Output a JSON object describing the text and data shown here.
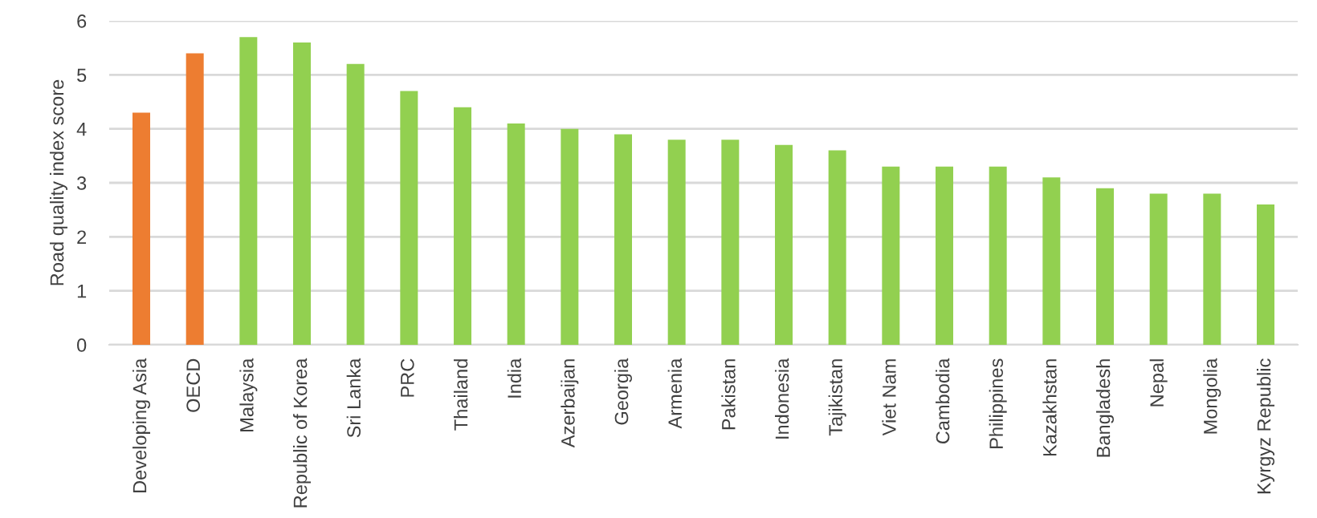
{
  "chart_data": {
    "type": "bar",
    "ylabel": "Road quality index score",
    "categories": [
      "Developing Asia",
      "OECD",
      "Malaysia",
      "Republic of Korea",
      "Sri Lanka",
      "PRC",
      "Thailand",
      "India",
      "Azerbaijan",
      "Georgia",
      "Armenia",
      "Pakistan",
      "Indonesia",
      "Tajikistan",
      "Viet Nam",
      "Cambodia",
      "Philippines",
      "Kazakhstan",
      "Bangladesh",
      "Nepal",
      "Mongolia",
      "Kyrgyz Republic"
    ],
    "values": [
      4.3,
      5.4,
      5.7,
      5.6,
      5.2,
      4.7,
      4.4,
      4.1,
      4.0,
      3.9,
      3.8,
      3.8,
      3.7,
      3.6,
      3.3,
      3.3,
      3.3,
      3.1,
      2.9,
      2.8,
      2.8,
      2.6
    ],
    "colors": [
      "#ed7d31",
      "#ed7d31",
      "#92d050",
      "#92d050",
      "#92d050",
      "#92d050",
      "#92d050",
      "#92d050",
      "#92d050",
      "#92d050",
      "#92d050",
      "#92d050",
      "#92d050",
      "#92d050",
      "#92d050",
      "#92d050",
      "#92d050",
      "#92d050",
      "#92d050",
      "#92d050",
      "#92d050",
      "#92d050"
    ],
    "ylim": [
      0,
      6
    ],
    "yticks": [
      0,
      1,
      2,
      3,
      4,
      5,
      6
    ],
    "grid": "y"
  }
}
